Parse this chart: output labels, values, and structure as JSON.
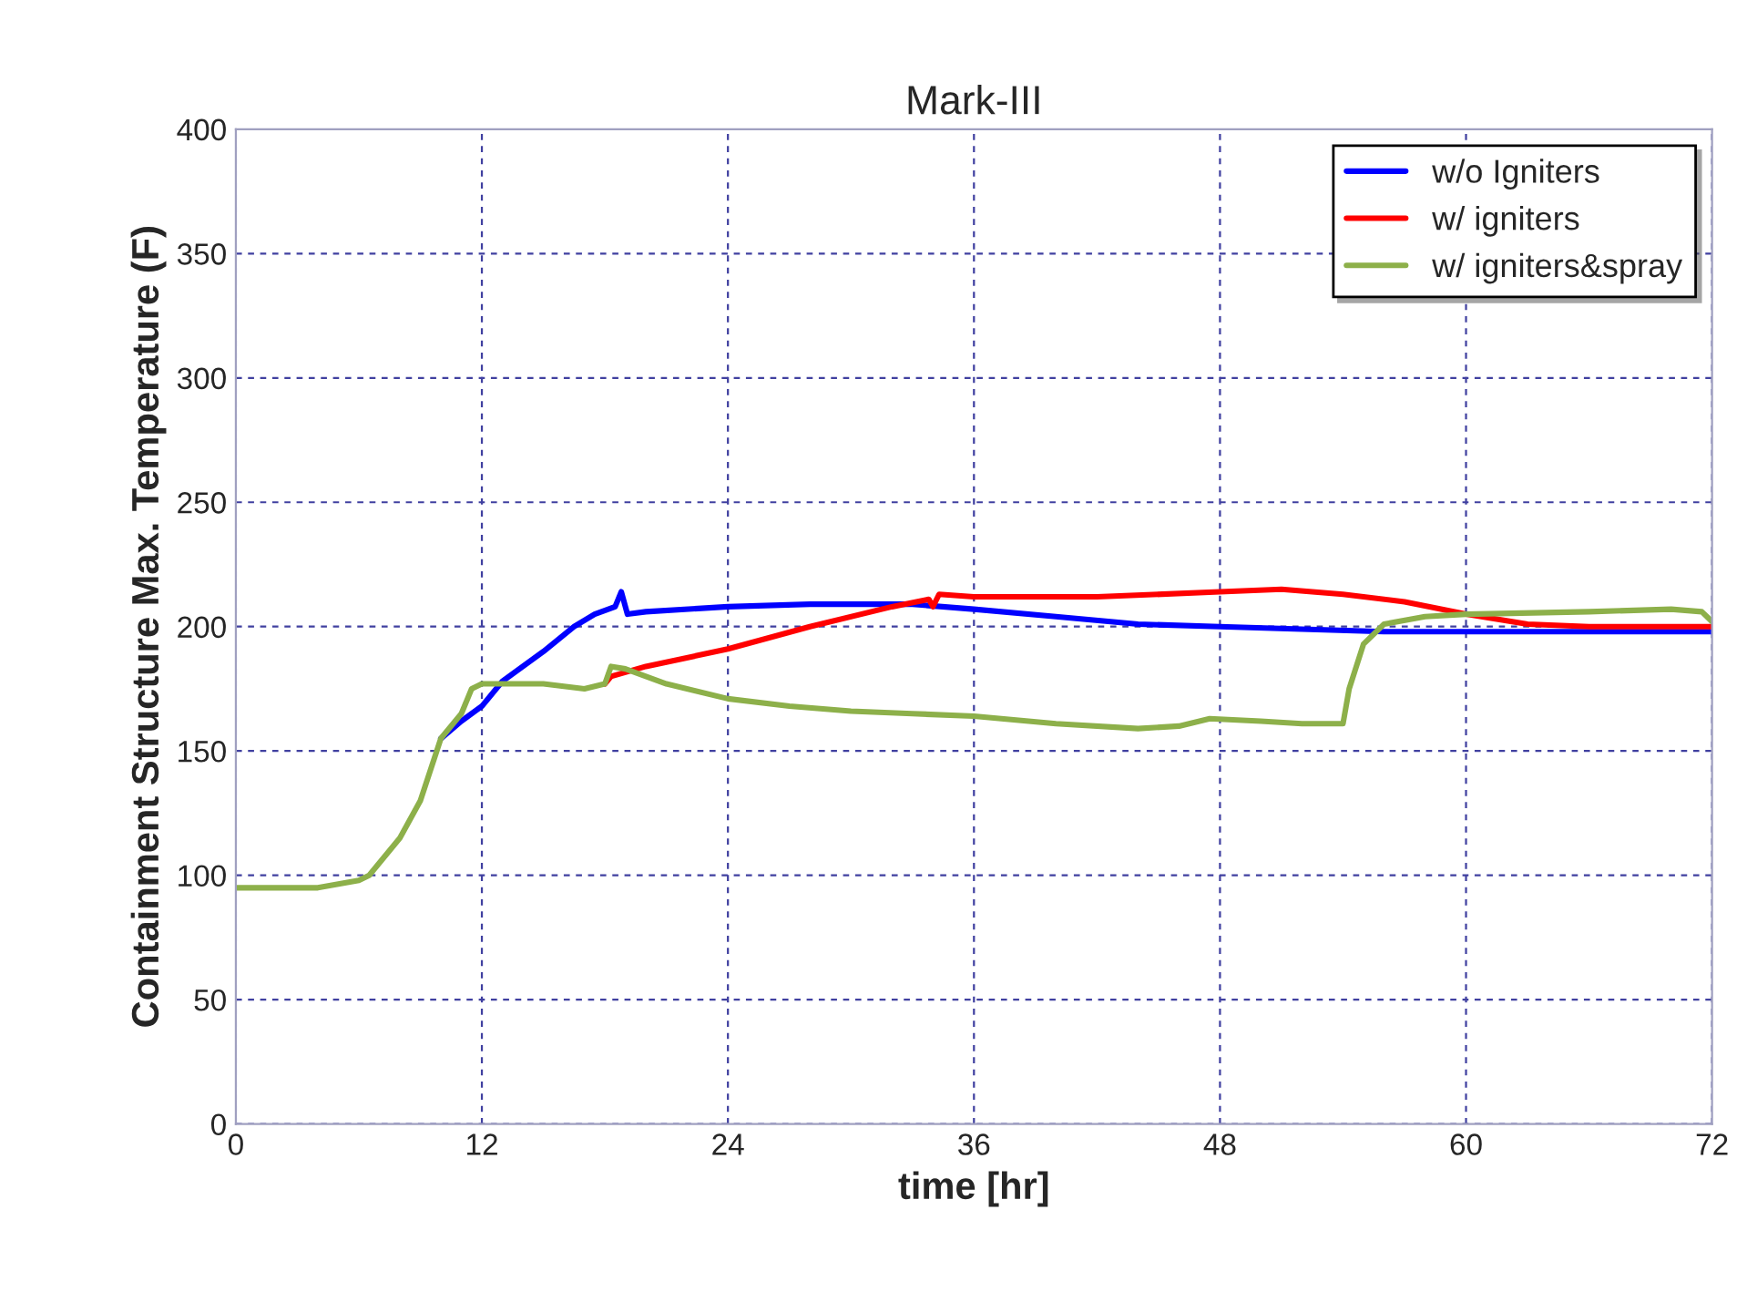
{
  "chart_data": {
    "type": "line",
    "title": "Mark-III",
    "xlabel": "time [hr]",
    "ylabel": "Containment Structure Max. Temperature (F)",
    "xlim": [
      0,
      72
    ],
    "xticks": [
      0,
      12,
      24,
      36,
      48,
      60,
      72
    ],
    "ylim": [
      0,
      400
    ],
    "yticks": [
      0,
      50,
      100,
      150,
      200,
      250,
      300,
      350,
      400
    ],
    "grid": true,
    "legend": "top right",
    "line_style": "solid",
    "marker": "none",
    "series": [
      {
        "name": "w/o Igniters",
        "color": "#0000ff",
        "x": [
          10,
          11,
          12,
          13,
          15,
          16.5,
          17.5,
          18.5,
          18.8,
          19.1,
          20,
          24,
          28,
          33,
          36,
          40,
          44,
          48,
          52,
          56,
          72
        ],
        "values": [
          155,
          162,
          168,
          178,
          190,
          200,
          205,
          208,
          214,
          205,
          206,
          208,
          209,
          209,
          207,
          204,
          201,
          200,
          199,
          198,
          198
        ]
      },
      {
        "name": "w/ igniters",
        "color": "#ff0000",
        "x": [
          18,
          18.3,
          20,
          24,
          28,
          32,
          33.8,
          34,
          34.3,
          36,
          42,
          48,
          51,
          54,
          57,
          60,
          63,
          66,
          72
        ],
        "values": [
          177,
          180,
          184,
          191,
          200,
          208,
          211,
          208,
          213,
          212,
          212,
          214,
          215,
          213,
          210,
          205,
          201,
          200,
          200
        ]
      },
      {
        "name": "w/ igniters&spray",
        "color": "#8db04a",
        "x": [
          0,
          4,
          6,
          6.5,
          8,
          9,
          10,
          11,
          11.5,
          12,
          15,
          17,
          18,
          18.3,
          19,
          21,
          24,
          27,
          30,
          33,
          36,
          40,
          44,
          46,
          47.5,
          50,
          52,
          54,
          54.3,
          55,
          56,
          58,
          60,
          66,
          70,
          71.5,
          72
        ],
        "values": [
          95,
          95,
          98,
          100,
          115,
          130,
          155,
          165,
          175,
          177,
          177,
          175,
          177,
          184,
          183,
          177,
          171,
          168,
          166,
          165,
          164,
          161,
          159,
          160,
          163,
          162,
          161,
          161,
          175,
          193,
          201,
          204,
          205,
          206,
          207,
          206,
          202
        ]
      }
    ]
  }
}
